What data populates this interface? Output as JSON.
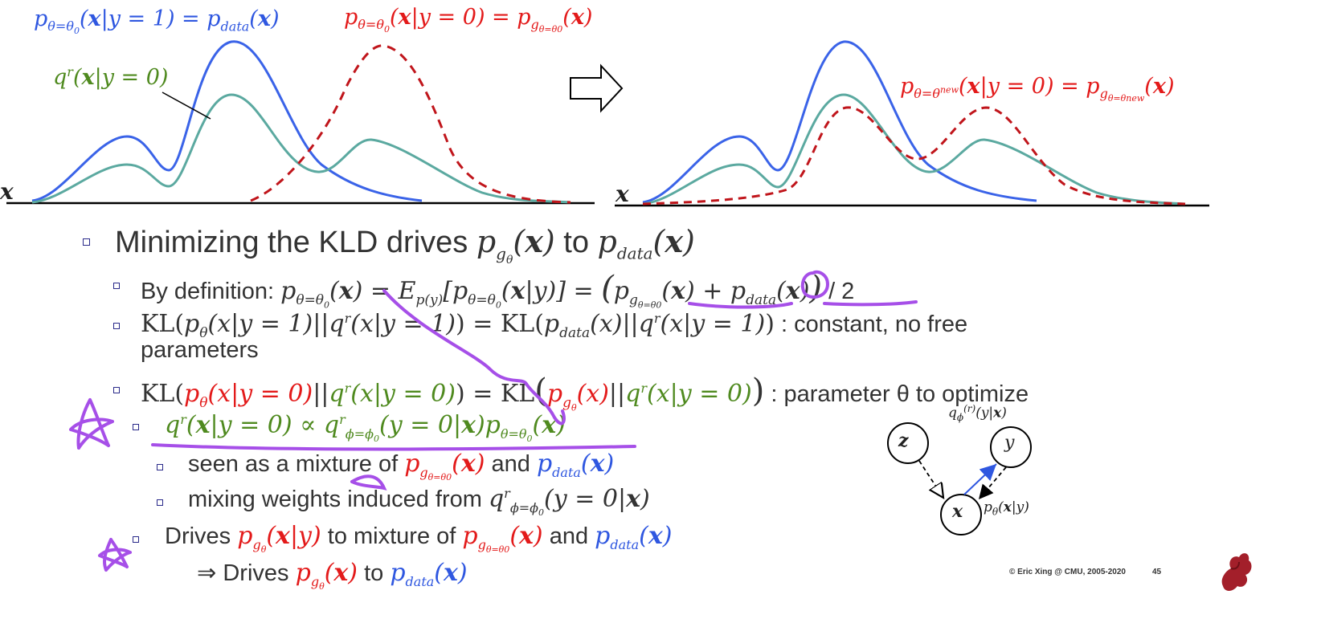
{
  "plot_left": {
    "label_pdata": "p_{θ=θ0}(x|y = 1) = p_{data}(x)",
    "label_pg": "p_{θ=θ0}(x|y = 0) = p_{g_{θ=θ0}}(x)",
    "label_q": "q^r(x|y = 0)",
    "axis": "x"
  },
  "arrow": "right-arrow-icon",
  "plot_right": {
    "label_pg_new": "p_{θ=θ^new}(x|y = 0) = p_{g_{θ=θ^new}}(x)",
    "axis": "x"
  },
  "bullets": {
    "main": {
      "prefix": "Minimizing the KLD drives ",
      "mid": " to "
    },
    "b1": {
      "prefix": "By definition: ",
      "expr": "p_{θ=θ0}(x) = E_{p(y)}[p_{θ=θ0}(x|y)] = (p_{g_{θ=θ0}}(x) + p_{data}(x)) / 2"
    },
    "b2": {
      "expr": "KL(p_θ(x|y = 1)||q^r(x|y = 1)) = KL(p_data(x)||q^r(x|y = 1))",
      "suffix": " : constant, no free",
      "cont": "parameters"
    },
    "b3": {
      "expr": "KL(p_θ(x|y = 0)||q^r(x|y = 0)) = KL(p_{g_θ}(x)||q^r(x|y = 0))",
      "suffix": " : parameter θ to optimize"
    },
    "b4": {
      "expr": "q^r(x|y = 0) ∝ q^r_{ϕ=ϕ0}(y = 0|x) p_{θ=θ0}(x)"
    },
    "b4a": {
      "prefix": "seen as a mixture of ",
      "mid": " and "
    },
    "b4b": {
      "prefix": "mixing weights induced from "
    },
    "b5": {
      "prefix": "Drives ",
      "mid1": " to mixture of ",
      "mid2": " and "
    },
    "b6": {
      "prefix": "⇒ Drives ",
      "mid": " to "
    }
  },
  "diagram": {
    "z": "z",
    "y": "y",
    "x": "x",
    "q_label": "q_ϕ^(r)(y|x)",
    "p_label": "p_θ(x|y)"
  },
  "footer": {
    "copyright": "© Eric Xing @ CMU, 2005-2020",
    "page": "45"
  },
  "logo": "dragon-logo-icon",
  "colors": {
    "blue": "#2f57e0",
    "red": "#e31a1a",
    "green": "#4f8a1f",
    "teal": "#5ba9a0",
    "annotation": "#a64fe8"
  }
}
